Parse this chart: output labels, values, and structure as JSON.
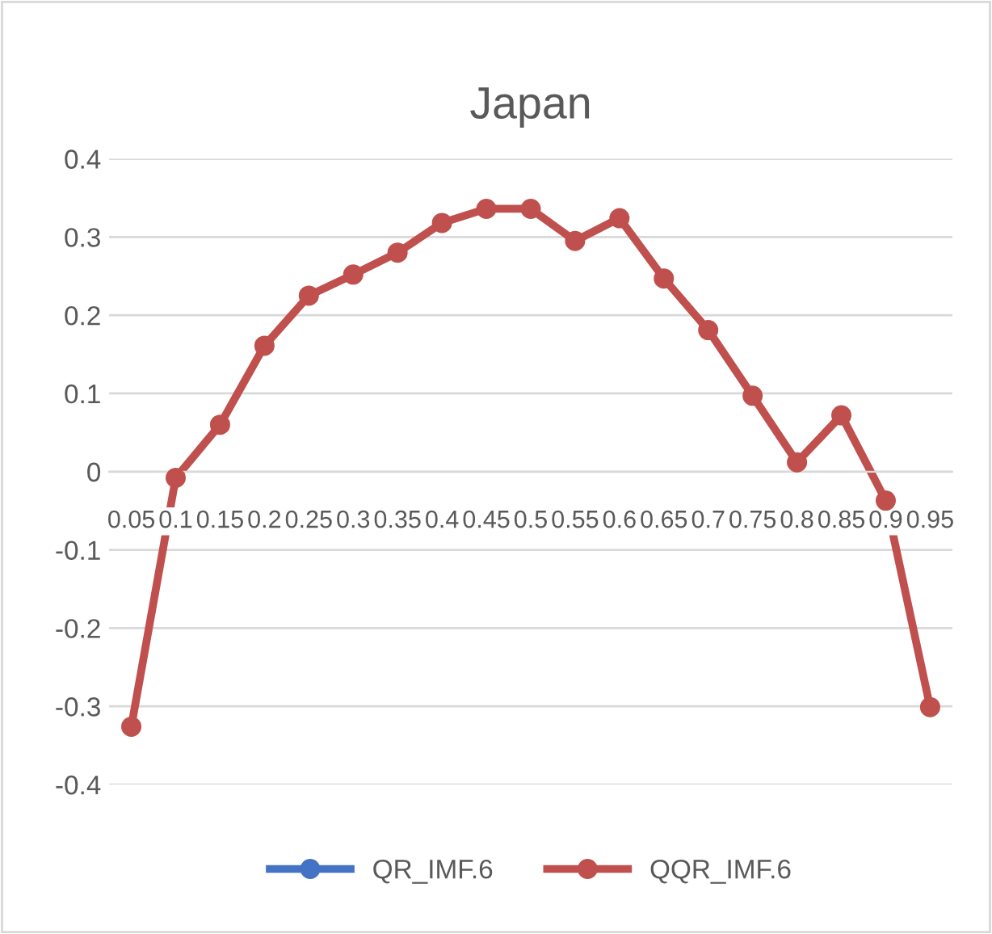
{
  "chart_data": {
    "type": "line",
    "title": "Japan",
    "categories": [
      "0.05",
      "0.1",
      "0.15",
      "0.2",
      "0.25",
      "0.3",
      "0.35",
      "0.4",
      "0.45",
      "0.5",
      "0.55",
      "0.6",
      "0.65",
      "0.7",
      "0.75",
      "0.8",
      "0.85",
      "0.9",
      "0.95"
    ],
    "series": [
      {
        "name": "QR_IMF.6",
        "color": "#4472c4",
        "values": [
          null,
          null,
          null,
          null,
          null,
          null,
          null,
          null,
          null,
          null,
          null,
          null,
          null,
          null,
          null,
          null,
          null,
          null,
          null
        ]
      },
      {
        "name": "QQR_IMF.6",
        "color": "#c0504d",
        "values": [
          -0.326,
          -0.008,
          0.06,
          0.161,
          0.225,
          0.252,
          0.28,
          0.318,
          0.336,
          0.336,
          0.295,
          0.324,
          0.247,
          0.181,
          0.097,
          0.012,
          0.072,
          -0.037,
          -0.301
        ]
      }
    ],
    "ylim": [
      -0.4,
      0.4
    ],
    "yticks": [
      -0.4,
      -0.3,
      -0.2,
      -0.1,
      0,
      0.1,
      0.2,
      0.3,
      0.4
    ],
    "grid": "y",
    "legend": "bottom",
    "marker": "circle",
    "line_style": "solid"
  }
}
